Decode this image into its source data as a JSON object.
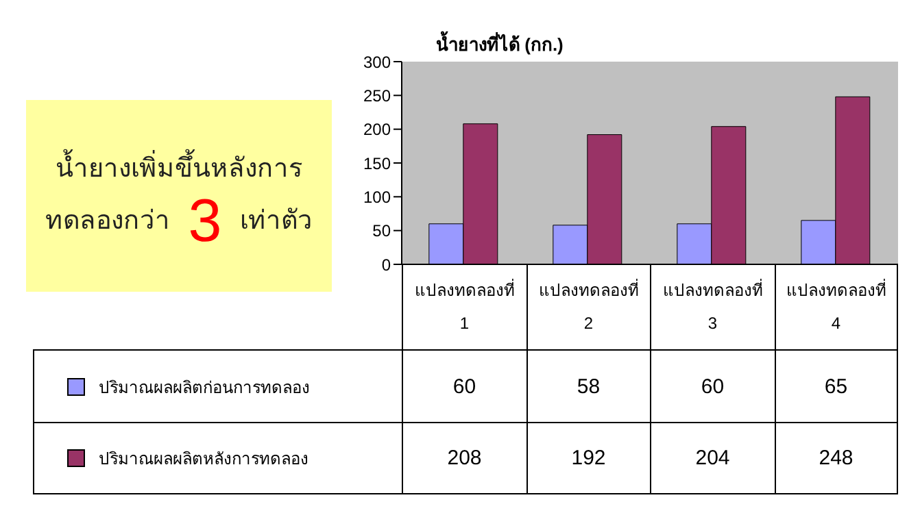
{
  "chart_data": {
    "type": "bar",
    "ylabel": "น้ำยางที่ได้ (กก.)",
    "annotations": [
      "น้ำยางเพิ่มขึ้นหลังการทดลองกว่า 3 เท่าตัว"
    ],
    "categories": [
      "แปลงทดลองที่ 1",
      "แปลงทดลองที่ 2",
      "แปลงทดลองที่ 3",
      "แปลงทดลองที่ 4"
    ],
    "series": [
      {
        "name": "ปริมาณผลผลิตก่อนการทดลอง",
        "color": "#9999ff",
        "values": [
          60,
          58,
          60,
          65
        ]
      },
      {
        "name": "ปริมาณผลผลิตหลังการทดลอง",
        "color": "#993366",
        "values": [
          208,
          192,
          204,
          248
        ]
      }
    ],
    "ylim": [
      0,
      300
    ],
    "yticks": [
      0,
      50,
      100,
      150,
      200,
      250,
      300
    ],
    "data_labels": true,
    "legend": "bottom left"
  }
}
